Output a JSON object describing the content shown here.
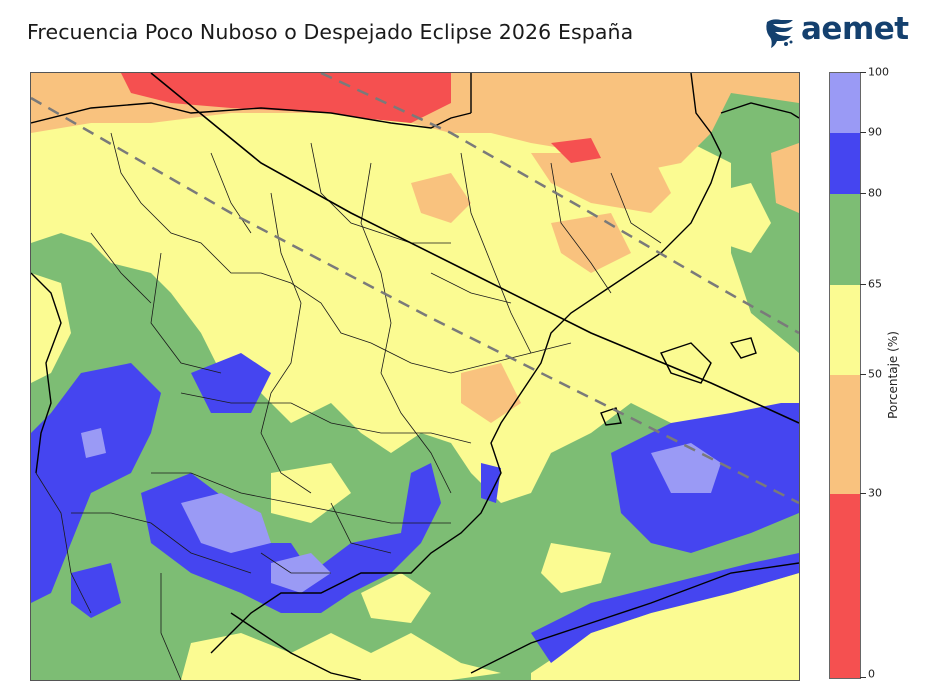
{
  "title": "Frecuencia Poco Nuboso o Despejado Eclipse 2026 España",
  "logo": {
    "text": "aemet",
    "color": "#14406e"
  },
  "colorbar": {
    "label": "Porcentaje (%)",
    "ticks": [
      "0",
      "30",
      "50",
      "65",
      "80",
      "90",
      "100"
    ],
    "bins": [
      {
        "from": 0,
        "to": 30,
        "color": "#f55050"
      },
      {
        "from": 30,
        "to": 50,
        "color": "#f9c27e"
      },
      {
        "from": 50,
        "to": 65,
        "color": "#fbfb92"
      },
      {
        "from": 65,
        "to": 80,
        "color": "#7dbd74"
      },
      {
        "from": 80,
        "to": 90,
        "color": "#4545f0"
      },
      {
        "from": 90,
        "to": 100,
        "color": "#9a9af5"
      }
    ]
  },
  "map": {
    "legend_reference": {
      "totality_centerline": "#000000",
      "totality_limits": "#7a7a7a",
      "boundaries": "#1a1a1a",
      "coast": "#000000"
    }
  }
}
